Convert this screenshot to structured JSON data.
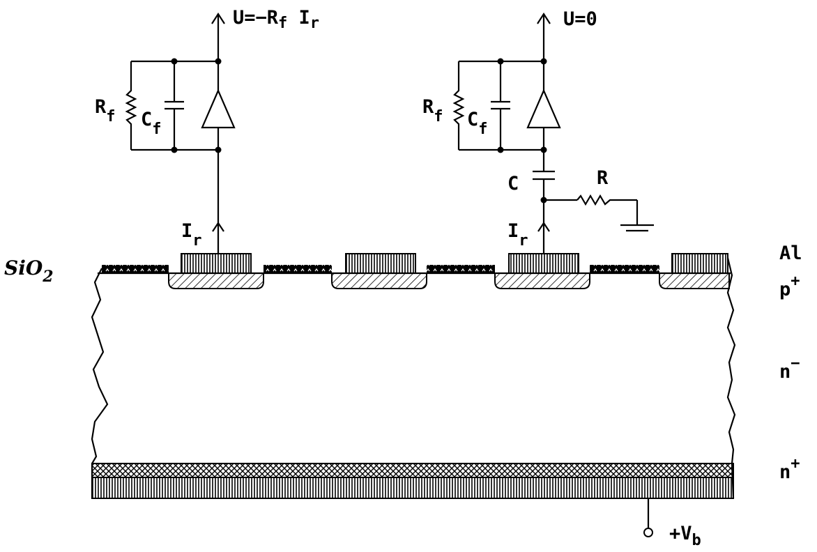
{
  "labels": {
    "out_left_main": "U=−R",
    "out_left_sub": "f",
    "out_left_tail": " I",
    "out_left_tail_sub": "r",
    "out_right": "U=0",
    "rf_main": "R",
    "rf_sub": "f",
    "cf_main": "C",
    "cf_sub": "f",
    "c": "C",
    "r": "R",
    "ir_main": "I",
    "ir_sub": "r",
    "sio2": "SiO",
    "sio2_sub": "2",
    "al": "Al",
    "p_plus": "p",
    "p_plus_sup": "+",
    "n_minus": "n",
    "n_minus_sup": "−",
    "n_plus": "n",
    "n_plus_sup": "+",
    "vb_main": "+V",
    "vb_sub": "b"
  },
  "colors": {
    "ink": "#000000",
    "background": "#ffffff"
  }
}
